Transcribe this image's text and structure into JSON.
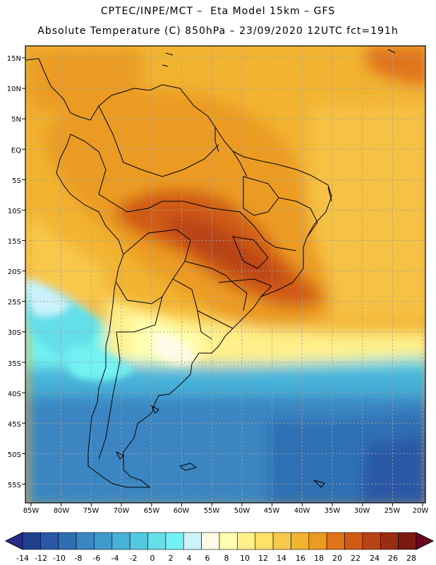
{
  "header": {
    "line1": "CPTEC/INPE/MCT –  Eta Model 15km – GFS",
    "line2": "Absolute Temperature (C) 850hPa – 23/09/2020 12UTC fct=191h"
  },
  "map": {
    "lat_labels": [
      "15N",
      "10N",
      "5N",
      "EQ",
      "5S",
      "10S",
      "15S",
      "20S",
      "25S",
      "30S",
      "35S",
      "40S",
      "45S",
      "50S",
      "55S"
    ],
    "lon_labels": [
      "85W",
      "80W",
      "75W",
      "70W",
      "65W",
      "60W",
      "55W",
      "50W",
      "45W",
      "40W",
      "35W",
      "30W",
      "25W",
      "20W"
    ]
  },
  "colorbar": {
    "labels": [
      "-14",
      "-12",
      "-10",
      "-8",
      "-6",
      "-4",
      "-2",
      "0",
      "2",
      "4",
      "6",
      "8",
      "10",
      "12",
      "14",
      "16",
      "18",
      "20",
      "22",
      "24",
      "26",
      "28"
    ],
    "colors": [
      "#1f3f8c",
      "#2a58a6",
      "#2e6fb4",
      "#3a86c2",
      "#3f9bcd",
      "#47b1d8",
      "#55c8e1",
      "#64dfea",
      "#72f2f2",
      "#ccf3fb",
      "#fffbe6",
      "#ffffb0",
      "#fff08a",
      "#fde068",
      "#f8c84c",
      "#f2b331",
      "#eb9b20",
      "#e0741a",
      "#d05a16",
      "#b84214",
      "#9a2c12",
      "#7a1a10"
    ],
    "under_color": "#2a2a8a",
    "over_color": "#6e0020"
  }
}
